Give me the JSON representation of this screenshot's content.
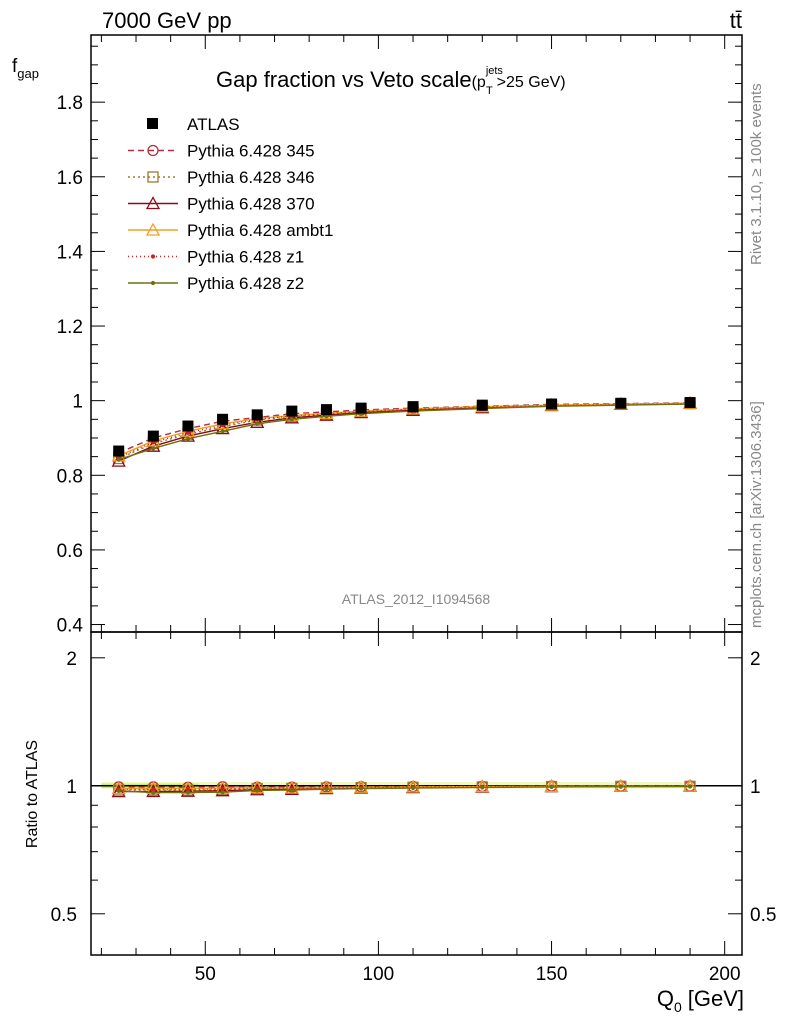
{
  "chart_data": [
    {
      "type": "line",
      "header_left": "7000 GeV pp",
      "header_right": "tt̄",
      "title": "Gap fraction vs Veto scale",
      "title_cut_prefix": "(p",
      "title_cut_sup": "jets",
      "title_cut_sub": "T",
      "title_cut_suffix": ">25 GeV)",
      "ylabel_main": "f",
      "ylabel_sub": "gap",
      "analysis_id": "ATLAS_2012_I1094568",
      "side_label_top": "Rivet 3.1.10, ≥ 100k events",
      "side_label_bottom": "mcplots.cern.ch [arXiv:1306.3436]",
      "xlim": [
        17,
        205
      ],
      "ylim": [
        0.38,
        1.98
      ],
      "y_ticks": [
        0.4,
        0.6,
        0.8,
        1,
        1.2,
        1.4,
        1.6,
        1.8
      ],
      "y_tick_labels": [
        "0.4",
        "0.6",
        "0.8",
        "1",
        "1.2",
        "1.4",
        "1.6",
        "1.8"
      ],
      "x": [
        25,
        35,
        45,
        55,
        65,
        75,
        85,
        95,
        110,
        130,
        150,
        170,
        190
      ],
      "data": {
        "name": "ATLAS",
        "values": [
          0.865,
          0.905,
          0.932,
          0.95,
          0.962,
          0.972,
          0.976,
          0.98,
          0.984,
          0.988,
          0.991,
          0.993,
          0.995
        ]
      },
      "series": [
        {
          "name": "Pythia 6.428 345",
          "color": "#b03040",
          "dash": "6,4",
          "marker": "circle",
          "values": [
            0.86,
            0.9,
            0.925,
            0.945,
            0.955,
            0.965,
            0.97,
            0.975,
            0.98,
            0.985,
            0.99,
            0.992,
            0.994
          ]
        },
        {
          "name": "Pythia 6.428 346",
          "color": "#a07830",
          "dash": "2,3",
          "marker": "square",
          "values": [
            0.845,
            0.885,
            0.91,
            0.93,
            0.948,
            0.958,
            0.964,
            0.97,
            0.976,
            0.982,
            0.987,
            0.99,
            0.992
          ]
        },
        {
          "name": "Pythia 6.428 370",
          "color": "#8b0a1e",
          "dash": "",
          "marker": "triangle",
          "values": [
            0.838,
            0.878,
            0.905,
            0.925,
            0.942,
            0.954,
            0.961,
            0.968,
            0.974,
            0.981,
            0.987,
            0.99,
            0.993
          ]
        },
        {
          "name": "Pythia 6.428 ambt1",
          "color": "#f0a020",
          "dash": "",
          "marker": "triangle",
          "values": [
            0.852,
            0.892,
            0.918,
            0.938,
            0.952,
            0.96,
            0.966,
            0.972,
            0.978,
            0.984,
            0.988,
            0.991,
            0.993
          ]
        },
        {
          "name": "Pythia 6.428 z1",
          "color": "#cc2020",
          "dash": "1,3",
          "marker": "dot",
          "values": [
            0.848,
            0.888,
            0.914,
            0.934,
            0.95,
            0.959,
            0.965,
            0.971,
            0.977,
            0.983,
            0.987,
            0.99,
            0.992
          ]
        },
        {
          "name": "Pythia 6.428 z2",
          "color": "#707010",
          "dash": "",
          "marker": "dot",
          "values": [
            0.842,
            0.872,
            0.898,
            0.918,
            0.938,
            0.95,
            0.958,
            0.965,
            0.972,
            0.979,
            0.985,
            0.988,
            0.991
          ]
        }
      ]
    },
    {
      "type": "line",
      "ylabel": "Ratio to ATLAS",
      "xlabel_main": "Q",
      "xlabel_sub": "0",
      "xlabel_unit": "[GeV]",
      "xlim": [
        17,
        205
      ],
      "ylim": [
        0.4,
        2.3
      ],
      "log_y": true,
      "x_ticks": [
        50,
        100,
        150,
        200
      ],
      "x_tick_labels": [
        "50",
        "100",
        "150",
        "200"
      ],
      "y_ticks": [
        0.5,
        1,
        2
      ],
      "y_tick_labels": [
        "0.5",
        "1",
        "2"
      ],
      "x": [
        25,
        35,
        45,
        55,
        65,
        75,
        85,
        95,
        110,
        130,
        150,
        170,
        190
      ],
      "series": [
        {
          "name": "Pythia 6.428 345",
          "color": "#b03040",
          "dash": "6,4",
          "marker": "circle",
          "values": [
            0.994,
            0.994,
            0.992,
            0.995,
            0.993,
            0.993,
            0.994,
            0.995,
            0.996,
            0.997,
            0.999,
            0.999,
            0.999
          ]
        },
        {
          "name": "Pythia 6.428 346",
          "color": "#a07830",
          "dash": "2,3",
          "marker": "square",
          "values": [
            0.977,
            0.978,
            0.976,
            0.979,
            0.985,
            0.986,
            0.988,
            0.99,
            0.992,
            0.994,
            0.996,
            0.997,
            0.997
          ]
        },
        {
          "name": "Pythia 6.428 370",
          "color": "#8b0a1e",
          "dash": "",
          "marker": "triangle",
          "values": [
            0.969,
            0.97,
            0.971,
            0.974,
            0.979,
            0.981,
            0.985,
            0.988,
            0.99,
            0.993,
            0.996,
            0.997,
            0.998
          ]
        },
        {
          "name": "Pythia 6.428 ambt1",
          "color": "#f0a020",
          "dash": "",
          "marker": "triangle",
          "values": [
            0.985,
            0.986,
            0.985,
            0.987,
            0.99,
            0.988,
            0.99,
            0.992,
            0.994,
            0.996,
            0.997,
            0.998,
            0.998
          ]
        },
        {
          "name": "Pythia 6.428 z1",
          "color": "#cc2020",
          "dash": "1,3",
          "marker": "dot",
          "values": [
            0.98,
            0.981,
            0.981,
            0.983,
            0.988,
            0.987,
            0.989,
            0.991,
            0.993,
            0.995,
            0.996,
            0.997,
            0.997
          ]
        },
        {
          "name": "Pythia 6.428 z2",
          "color": "#707010",
          "dash": "",
          "marker": "dot",
          "values": [
            0.973,
            0.964,
            0.964,
            0.966,
            0.975,
            0.977,
            0.982,
            0.985,
            0.988,
            0.991,
            0.994,
            0.995,
            0.996
          ]
        }
      ]
    }
  ]
}
